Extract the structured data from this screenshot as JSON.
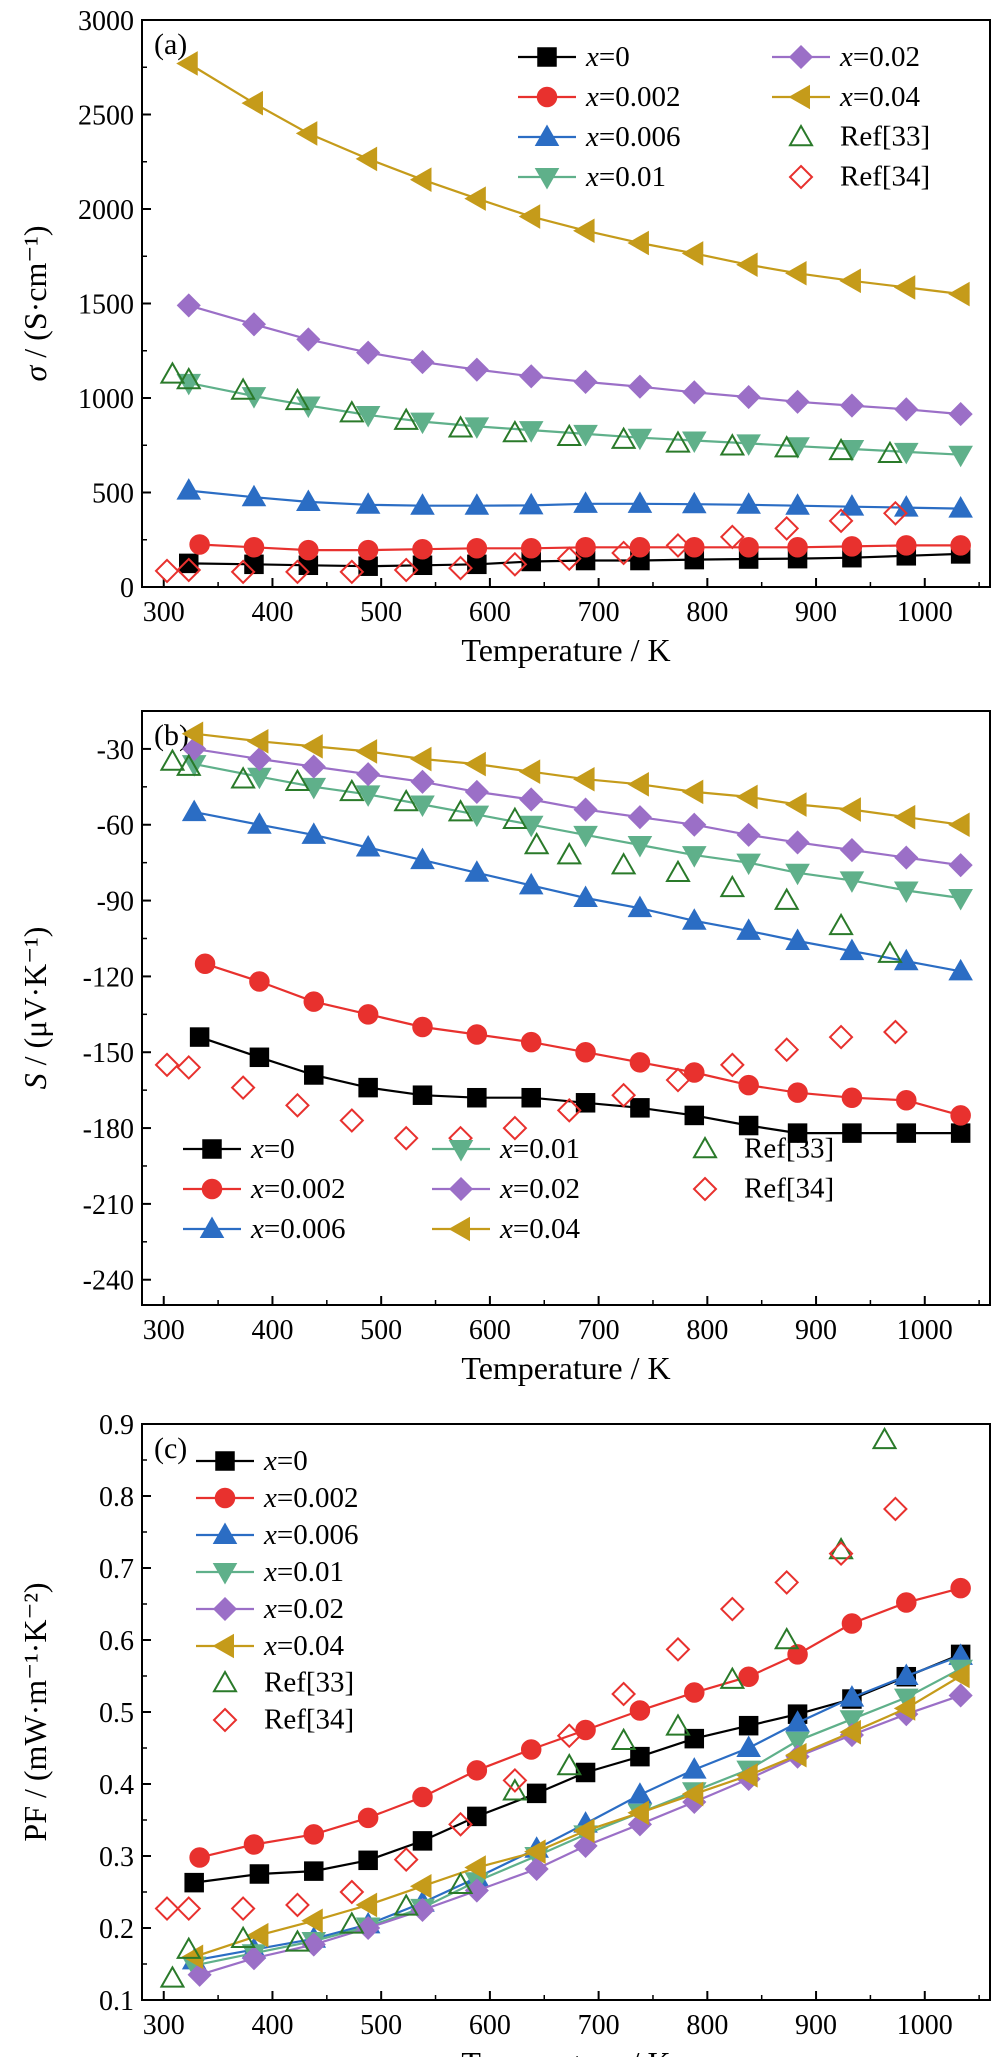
{
  "chart_data": [
    {
      "panel_label": "(a)",
      "type": "line",
      "xlabel": "Temperature / K",
      "ylabel_sym": "σ",
      "ylabel_unit": " / (S·cm⁻¹)",
      "xlim": [
        280,
        1060
      ],
      "ylim": [
        0,
        3000
      ],
      "xticks": [
        300,
        400,
        500,
        600,
        700,
        800,
        900,
        1000
      ],
      "yticks": [
        0,
        500,
        1000,
        1500,
        2000,
        2500,
        3000
      ],
      "legend_position": "top-right",
      "series": [
        {
          "name": "x=0",
          "color": "#000000",
          "marker": "square",
          "line": true,
          "x": [
            323,
            383,
            433,
            488,
            538,
            588,
            638,
            688,
            738,
            788,
            838,
            883,
            933,
            983,
            1033
          ],
          "y": [
            125,
            120,
            115,
            110,
            115,
            120,
            135,
            140,
            140,
            145,
            148,
            150,
            155,
            165,
            175
          ]
        },
        {
          "name": "x=0.002",
          "color": "#e8312e",
          "marker": "circle",
          "line": true,
          "x": [
            333,
            383,
            433,
            488,
            538,
            588,
            638,
            688,
            738,
            788,
            838,
            883,
            933,
            983,
            1033
          ],
          "y": [
            225,
            210,
            195,
            195,
            200,
            205,
            205,
            210,
            210,
            210,
            210,
            210,
            215,
            220,
            220
          ]
        },
        {
          "name": "x=0.006",
          "color": "#2b6dc4",
          "marker": "triangle-up",
          "line": true,
          "x": [
            323,
            383,
            433,
            488,
            538,
            588,
            638,
            688,
            738,
            788,
            838,
            883,
            933,
            983,
            1033
          ],
          "y": [
            510,
            475,
            450,
            435,
            430,
            430,
            432,
            440,
            440,
            438,
            435,
            430,
            425,
            420,
            415
          ]
        },
        {
          "name": "x=0.01",
          "color": "#5fb08a",
          "marker": "triangle-down",
          "line": true,
          "x": [
            323,
            383,
            433,
            488,
            538,
            588,
            638,
            688,
            738,
            788,
            838,
            883,
            933,
            983,
            1033
          ],
          "y": [
            1080,
            1010,
            960,
            910,
            875,
            850,
            830,
            810,
            790,
            775,
            760,
            745,
            730,
            715,
            700
          ]
        },
        {
          "name": "x=0.02",
          "color": "#9b6fc7",
          "marker": "diamond",
          "line": true,
          "x": [
            323,
            383,
            433,
            488,
            538,
            588,
            638,
            688,
            738,
            788,
            838,
            883,
            933,
            983,
            1033
          ],
          "y": [
            1490,
            1390,
            1310,
            1240,
            1190,
            1150,
            1115,
            1085,
            1060,
            1030,
            1005,
            980,
            960,
            940,
            915
          ]
        },
        {
          "name": "x=0.04",
          "color": "#c59b1a",
          "marker": "triangle-left",
          "line": true,
          "x": [
            323,
            383,
            433,
            488,
            538,
            588,
            638,
            688,
            738,
            788,
            838,
            883,
            933,
            983,
            1033
          ],
          "y": [
            2770,
            2560,
            2400,
            2265,
            2155,
            2055,
            1960,
            1885,
            1820,
            1765,
            1705,
            1660,
            1620,
            1585,
            1550
          ]
        },
        {
          "name": "Ref[33]",
          "color": "#2a7a2a",
          "marker": "triangle-up-open",
          "line": false,
          "x": [
            308,
            323,
            373,
            423,
            473,
            523,
            573,
            623,
            673,
            723,
            773,
            823,
            873,
            923,
            968
          ],
          "y": [
            1125,
            1095,
            1040,
            985,
            920,
            880,
            840,
            815,
            795,
            780,
            760,
            745,
            735,
            720,
            705
          ]
        },
        {
          "name": "Ref[34]",
          "color": "#e8312e",
          "marker": "diamond-open",
          "line": false,
          "x": [
            303,
            323,
            373,
            423,
            473,
            523,
            573,
            623,
            673,
            723,
            773,
            823,
            873,
            923,
            973
          ],
          "y": [
            85,
            90,
            80,
            80,
            80,
            90,
            100,
            120,
            150,
            180,
            220,
            265,
            310,
            350,
            390
          ]
        }
      ]
    },
    {
      "panel_label": "(b)",
      "type": "line",
      "xlabel": "Temperature / K",
      "ylabel_sym": "S",
      "ylabel_unit": " / (μV·K⁻¹)",
      "xlim": [
        280,
        1060
      ],
      "ylim": [
        -250,
        -15
      ],
      "xticks": [
        300,
        400,
        500,
        600,
        700,
        800,
        900,
        1000
      ],
      "yticks": [
        -240,
        -210,
        -180,
        -150,
        -120,
        -90,
        -60,
        -30
      ],
      "legend_position": "bottom-left",
      "series": [
        {
          "name": "x=0",
          "color": "#000000",
          "marker": "square",
          "line": true,
          "x": [
            333,
            388,
            438,
            488,
            538,
            588,
            638,
            688,
            738,
            788,
            838,
            883,
            933,
            983,
            1033
          ],
          "y": [
            -144,
            -152,
            -159,
            -164,
            -167,
            -168,
            -168,
            -170,
            -172,
            -175,
            -179,
            -182,
            -182,
            -182,
            -182
          ]
        },
        {
          "name": "x=0.002",
          "color": "#e8312e",
          "marker": "circle",
          "line": true,
          "x": [
            338,
            388,
            438,
            488,
            538,
            588,
            638,
            688,
            738,
            788,
            838,
            883,
            933,
            983,
            1033
          ],
          "y": [
            -115,
            -122,
            -130,
            -135,
            -140,
            -143,
            -146,
            -150,
            -154,
            -158,
            -163,
            -166,
            -168,
            -169,
            -175
          ]
        },
        {
          "name": "x=0.006",
          "color": "#2b6dc4",
          "marker": "triangle-up",
          "line": true,
          "x": [
            328,
            388,
            438,
            488,
            538,
            588,
            638,
            688,
            738,
            788,
            838,
            883,
            933,
            983,
            1033
          ],
          "y": [
            -55,
            -60,
            -64,
            -69,
            -74,
            -79,
            -84,
            -89,
            -93,
            -98,
            -102,
            -106,
            -110,
            -114,
            -118
          ]
        },
        {
          "name": "x=0.01",
          "color": "#5fb08a",
          "marker": "triangle-down",
          "line": true,
          "x": [
            328,
            388,
            438,
            488,
            538,
            588,
            638,
            688,
            738,
            788,
            838,
            883,
            933,
            983,
            1033
          ],
          "y": [
            -36,
            -41,
            -45,
            -48,
            -52,
            -56,
            -60,
            -64,
            -68,
            -72,
            -75,
            -79,
            -82,
            -86,
            -89
          ]
        },
        {
          "name": "x=0.02",
          "color": "#9b6fc7",
          "marker": "diamond",
          "line": true,
          "x": [
            328,
            388,
            438,
            488,
            538,
            588,
            638,
            688,
            738,
            788,
            838,
            883,
            933,
            983,
            1033
          ],
          "y": [
            -30,
            -34,
            -37,
            -40,
            -43,
            -47,
            -50,
            -54,
            -57,
            -60,
            -64,
            -67,
            -70,
            -73,
            -76
          ]
        },
        {
          "name": "x=0.04",
          "color": "#c59b1a",
          "marker": "triangle-left",
          "line": true,
          "x": [
            328,
            388,
            438,
            488,
            538,
            588,
            638,
            688,
            738,
            788,
            838,
            883,
            933,
            983,
            1033
          ],
          "y": [
            -24,
            -27,
            -29,
            -31,
            -34,
            -36,
            -39,
            -42,
            -44,
            -47,
            -49,
            -52,
            -54,
            -57,
            -60
          ]
        },
        {
          "name": "Ref[33]",
          "color": "#2a7a2a",
          "marker": "triangle-up-open",
          "line": false,
          "x": [
            308,
            323,
            373,
            423,
            473,
            523,
            573,
            623,
            643,
            673,
            723,
            773,
            823,
            873,
            923,
            968
          ],
          "y": [
            -35,
            -37,
            -42,
            -43,
            -47,
            -51,
            -55,
            -58,
            -68,
            -72,
            -76,
            -79,
            -85,
            -90,
            -100,
            -111
          ]
        },
        {
          "name": "Ref[34]",
          "color": "#e8312e",
          "marker": "diamond-open",
          "line": false,
          "x": [
            303,
            323,
            373,
            423,
            473,
            523,
            573,
            623,
            673,
            723,
            773,
            823,
            873,
            923,
            973
          ],
          "y": [
            -155,
            -156,
            -164,
            -171,
            -177,
            -184,
            -184,
            -180,
            -173,
            -167,
            -161,
            -155,
            -149,
            -144,
            -142
          ]
        }
      ]
    },
    {
      "panel_label": "(c)",
      "type": "line",
      "xlabel": "Temperature / K",
      "ylabel_sym": "PF",
      "ylabel_unit": " / (mW·m⁻¹·K⁻²)",
      "xlim": [
        280,
        1060
      ],
      "ylim": [
        0.1,
        0.9
      ],
      "xticks": [
        300,
        400,
        500,
        600,
        700,
        800,
        900,
        1000
      ],
      "yticks": [
        0.1,
        0.2,
        0.3,
        0.4,
        0.5,
        0.6,
        0.7,
        0.8,
        0.9
      ],
      "legend_position": "top-left",
      "series": [
        {
          "name": "x=0",
          "color": "#000000",
          "marker": "square",
          "line": true,
          "x": [
            328,
            388,
            438,
            488,
            538,
            588,
            643,
            688,
            738,
            788,
            838,
            883,
            933,
            983,
            1033
          ],
          "y": [
            0.263,
            0.275,
            0.279,
            0.294,
            0.321,
            0.355,
            0.387,
            0.416,
            0.438,
            0.463,
            0.481,
            0.497,
            0.518,
            0.549,
            0.58
          ]
        },
        {
          "name": "x=0.002",
          "color": "#e8312e",
          "marker": "circle",
          "line": true,
          "x": [
            333,
            383,
            438,
            488,
            538,
            588,
            638,
            688,
            738,
            788,
            838,
            883,
            933,
            983,
            1033
          ],
          "y": [
            0.298,
            0.316,
            0.33,
            0.353,
            0.382,
            0.419,
            0.448,
            0.475,
            0.502,
            0.527,
            0.549,
            0.58,
            0.623,
            0.652,
            0.672
          ]
        },
        {
          "name": "x=0.006",
          "color": "#2b6dc4",
          "marker": "triangle-up",
          "line": true,
          "x": [
            328,
            383,
            438,
            488,
            538,
            588,
            643,
            688,
            738,
            788,
            838,
            883,
            933,
            983,
            1033
          ],
          "y": [
            0.155,
            0.17,
            0.185,
            0.205,
            0.235,
            0.27,
            0.31,
            0.345,
            0.385,
            0.42,
            0.45,
            0.485,
            0.52,
            0.55,
            0.578
          ]
        },
        {
          "name": "x=0.01",
          "color": "#5fb08a",
          "marker": "triangle-down",
          "line": true,
          "x": [
            328,
            383,
            438,
            488,
            538,
            588,
            643,
            688,
            738,
            788,
            838,
            883,
            933,
            983,
            1033
          ],
          "y": [
            0.148,
            0.165,
            0.182,
            0.202,
            0.228,
            0.265,
            0.3,
            0.33,
            0.36,
            0.39,
            0.42,
            0.46,
            0.49,
            0.52,
            0.56
          ]
        },
        {
          "name": "x=0.02",
          "color": "#9b6fc7",
          "marker": "diamond",
          "line": true,
          "x": [
            333,
            383,
            438,
            488,
            538,
            588,
            643,
            688,
            738,
            788,
            838,
            883,
            933,
            983,
            1033
          ],
          "y": [
            0.135,
            0.158,
            0.177,
            0.2,
            0.225,
            0.252,
            0.282,
            0.314,
            0.344,
            0.375,
            0.407,
            0.438,
            0.468,
            0.497,
            0.523
          ]
        },
        {
          "name": "x=0.04",
          "color": "#c59b1a",
          "marker": "triangle-left",
          "line": true,
          "x": [
            328,
            388,
            438,
            488,
            538,
            588,
            643,
            688,
            738,
            788,
            838,
            883,
            933,
            983,
            1033
          ],
          "y": [
            0.16,
            0.19,
            0.21,
            0.232,
            0.258,
            0.284,
            0.306,
            0.335,
            0.36,
            0.386,
            0.412,
            0.44,
            0.472,
            0.505,
            0.55
          ]
        },
        {
          "name": "Ref[33]",
          "color": "#2a7a2a",
          "marker": "triangle-up-open",
          "line": false,
          "x": [
            308,
            323,
            373,
            423,
            473,
            523,
            573,
            623,
            673,
            723,
            773,
            823,
            873,
            923,
            963
          ],
          "y": [
            0.13,
            0.17,
            0.185,
            0.18,
            0.205,
            0.23,
            0.26,
            0.39,
            0.425,
            0.46,
            0.48,
            0.545,
            0.6,
            0.725,
            0.878
          ]
        },
        {
          "name": "Ref[34]",
          "color": "#e8312e",
          "marker": "diamond-open",
          "line": false,
          "x": [
            303,
            323,
            373,
            423,
            473,
            523,
            573,
            623,
            673,
            723,
            773,
            823,
            873,
            923,
            973
          ],
          "y": [
            0.227,
            0.227,
            0.227,
            0.232,
            0.25,
            0.295,
            0.344,
            0.405,
            0.467,
            0.525,
            0.587,
            0.643,
            0.68,
            0.72,
            0.782
          ]
        }
      ]
    }
  ]
}
